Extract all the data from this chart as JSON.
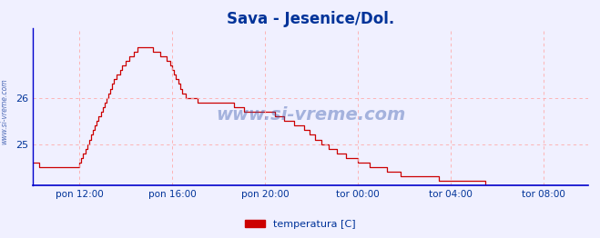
{
  "title": "Sava - Jesenice/Dol.",
  "title_color": "#003399",
  "title_fontsize": 12,
  "line_color": "#cc0000",
  "axis_color": "#0000cc",
  "plot_bg_color": "#f0f0ff",
  "grid_color_x": "#ffaaaa",
  "grid_color_y": "#ffaaaa",
  "watermark": "www.si-vreme.com",
  "watermark_color": "#3355aa",
  "watermark_side": "www.si-vreme.com",
  "legend_label": "temperatura [C]",
  "legend_color": "#cc0000",
  "ytick_vals": [
    25,
    26
  ],
  "ytick_labels": [
    "25",
    "26"
  ],
  "ylim": [
    24.1,
    27.5
  ],
  "xtick_labels": [
    "pon 12:00",
    "pon 16:00",
    "pon 20:00",
    "tor 00:00",
    "tor 04:00",
    "tor 08:00"
  ],
  "xtick_positions": [
    24,
    72,
    120,
    168,
    216,
    264
  ],
  "total_points": 288,
  "data_y": [
    24.6,
    24.6,
    24.6,
    24.5,
    24.5,
    24.5,
    24.5,
    24.5,
    24.5,
    24.5,
    24.5,
    24.5,
    24.5,
    24.5,
    24.5,
    24.5,
    24.5,
    24.5,
    24.5,
    24.5,
    24.5,
    24.5,
    24.5,
    24.5,
    24.6,
    24.7,
    24.8,
    24.9,
    25.0,
    25.1,
    25.2,
    25.3,
    25.4,
    25.5,
    25.6,
    25.7,
    25.8,
    25.9,
    26.0,
    26.1,
    26.2,
    26.3,
    26.4,
    26.5,
    26.5,
    26.6,
    26.7,
    26.7,
    26.8,
    26.8,
    26.9,
    26.9,
    27.0,
    27.0,
    27.1,
    27.1,
    27.1,
    27.1,
    27.1,
    27.1,
    27.1,
    27.1,
    27.0,
    27.0,
    27.0,
    27.0,
    26.9,
    26.9,
    26.9,
    26.8,
    26.8,
    26.7,
    26.6,
    26.5,
    26.4,
    26.3,
    26.2,
    26.1,
    26.1,
    26.0,
    26.0,
    26.0,
    26.0,
    26.0,
    26.0,
    25.9,
    25.9,
    25.9,
    25.9,
    25.9,
    25.9,
    25.9,
    25.9,
    25.9,
    25.9,
    25.9,
    25.9,
    25.9,
    25.9,
    25.9,
    25.9,
    25.9,
    25.9,
    25.9,
    25.8,
    25.8,
    25.8,
    25.8,
    25.8,
    25.7,
    25.7,
    25.7,
    25.7,
    25.7,
    25.7,
    25.7,
    25.7,
    25.7,
    25.7,
    25.7,
    25.7,
    25.7,
    25.7,
    25.7,
    25.7,
    25.6,
    25.6,
    25.6,
    25.6,
    25.6,
    25.5,
    25.5,
    25.5,
    25.5,
    25.5,
    25.4,
    25.4,
    25.4,
    25.4,
    25.4,
    25.3,
    25.3,
    25.3,
    25.2,
    25.2,
    25.2,
    25.1,
    25.1,
    25.1,
    25.0,
    25.0,
    25.0,
    25.0,
    24.9,
    24.9,
    24.9,
    24.9,
    24.8,
    24.8,
    24.8,
    24.8,
    24.8,
    24.7,
    24.7,
    24.7,
    24.7,
    24.7,
    24.7,
    24.6,
    24.6,
    24.6,
    24.6,
    24.6,
    24.6,
    24.5,
    24.5,
    24.5,
    24.5,
    24.5,
    24.5,
    24.5,
    24.5,
    24.5,
    24.4,
    24.4,
    24.4,
    24.4,
    24.4,
    24.4,
    24.4,
    24.3,
    24.3,
    24.3,
    24.3,
    24.3,
    24.3,
    24.3,
    24.3,
    24.3,
    24.3,
    24.3,
    24.3,
    24.3,
    24.3,
    24.3,
    24.3,
    24.3,
    24.3,
    24.3,
    24.3,
    24.2,
    24.2,
    24.2,
    24.2,
    24.2,
    24.2,
    24.2,
    24.2,
    24.2,
    24.2,
    24.2,
    24.2,
    24.2,
    24.2,
    24.2,
    24.2,
    24.2,
    24.2,
    24.2,
    24.2,
    24.2,
    24.2,
    24.2,
    24.2,
    24.1,
    24.1,
    24.1,
    24.1,
    24.1,
    24.1,
    24.1,
    24.1,
    24.1,
    24.1,
    24.1,
    24.1,
    24.1,
    24.1,
    24.1,
    24.1,
    24.1,
    24.1,
    24.1,
    24.1,
    24.1,
    24.1,
    24.1,
    24.1,
    24.1,
    24.1,
    24.1,
    24.1,
    24.1,
    24.1,
    24.1,
    24.1,
    24.1,
    24.0,
    24.0,
    24.0,
    24.0,
    24.0,
    24.0,
    24.0,
    24.0,
    24.0,
    24.0,
    24.0,
    24.0,
    24.0,
    24.0,
    24.0,
    24.0,
    24.0,
    24.0,
    24.0,
    24.0,
    24.0
  ]
}
